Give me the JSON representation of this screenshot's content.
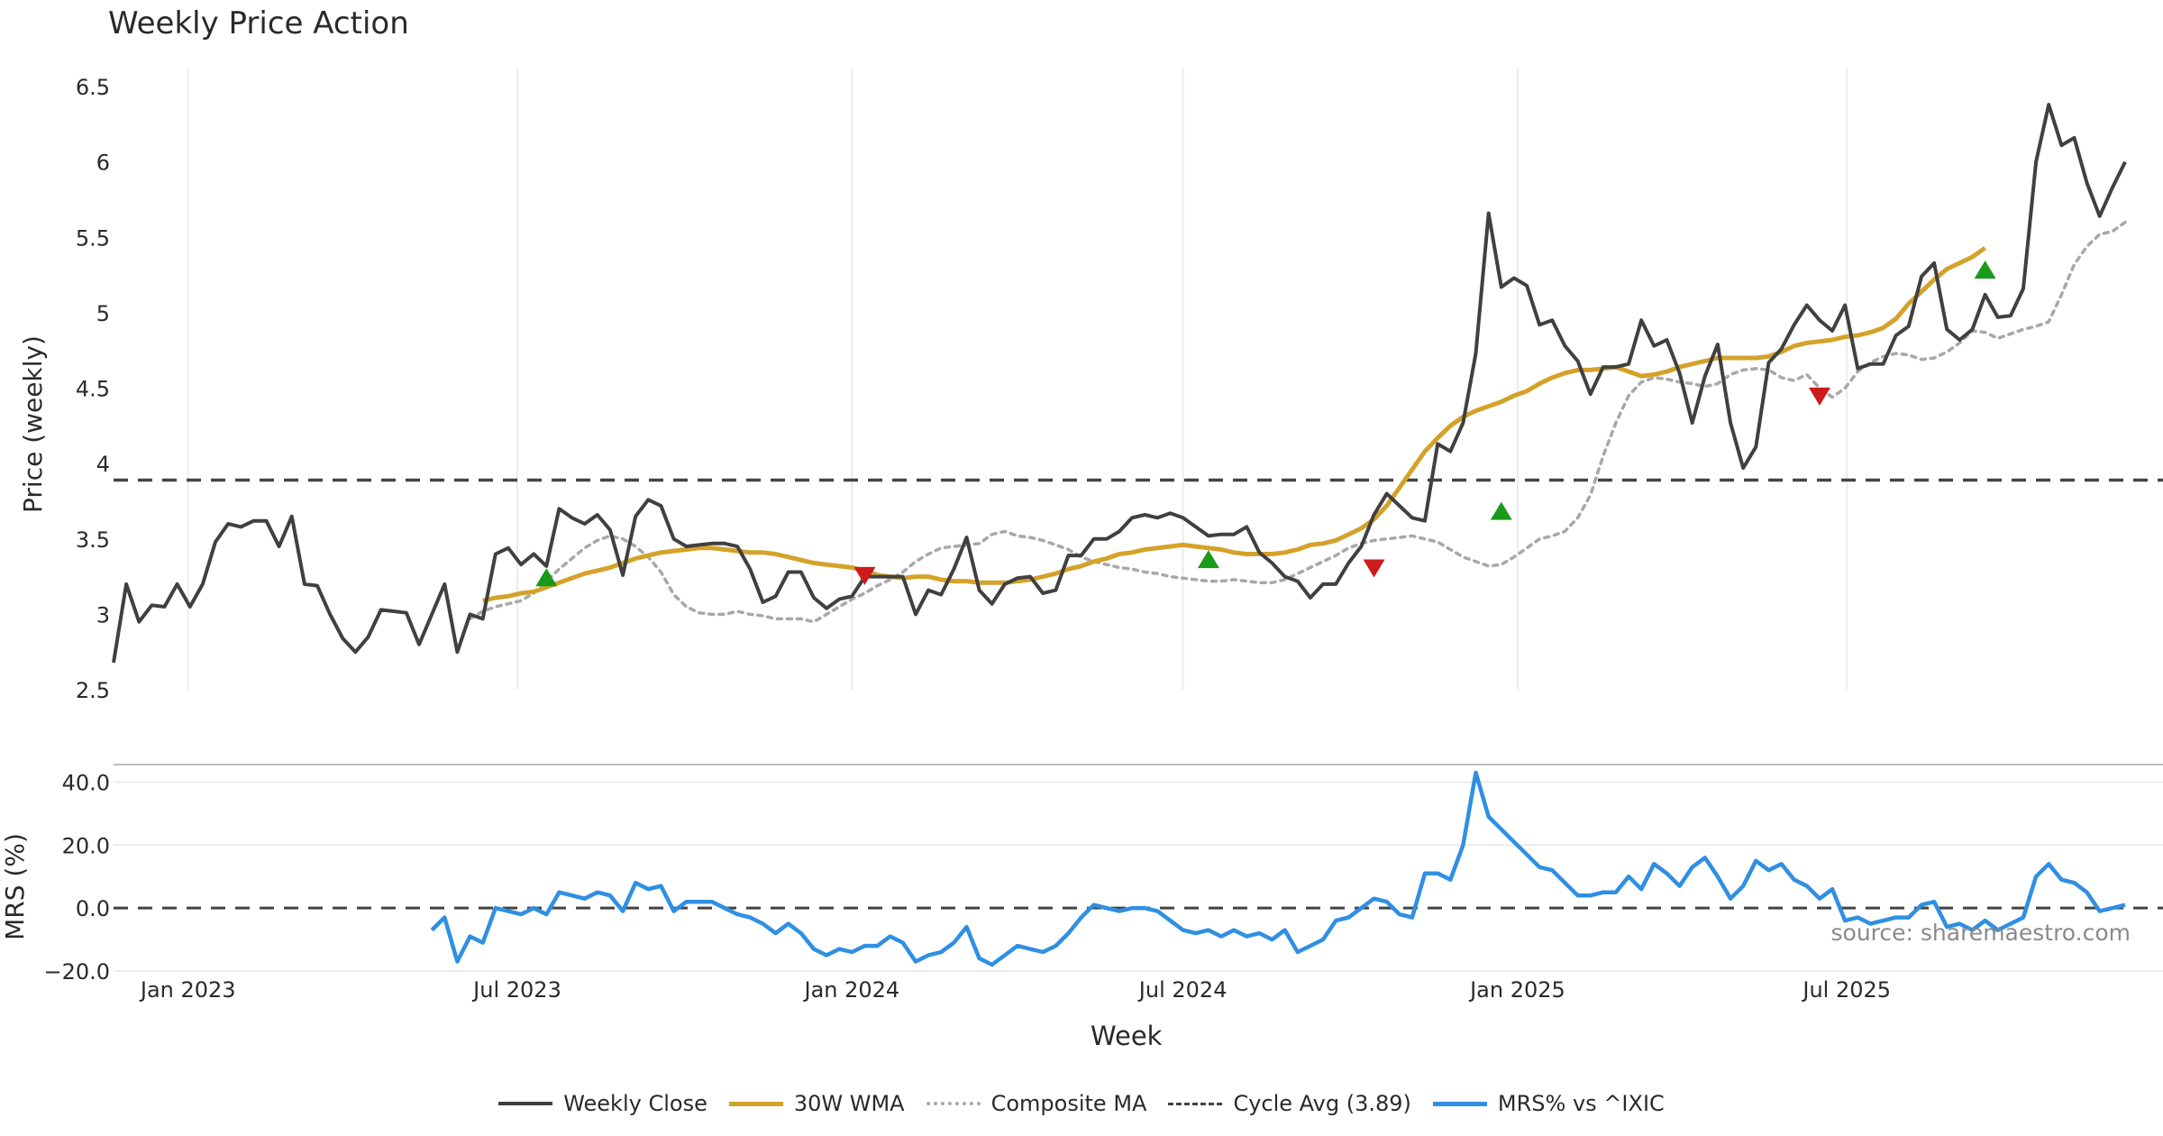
{
  "title": "Weekly Price Action",
  "source_note": "source: sharemaestro.com",
  "colors": {
    "close": "#404040",
    "wma": "#d4a22a",
    "composite": "#a8a8a8",
    "cycle": "#444444",
    "mrs": "#2f8fe3",
    "buy": "#1a9a1a",
    "sell": "#cc1b1b",
    "grid": "#ececec"
  },
  "chart_data": [
    {
      "type": "line",
      "title": "Weekly Price Action",
      "ylabel": "Price (weekly)",
      "xlabel": "",
      "x_start": "2022-11-21",
      "x_step_days": 7,
      "ylim": [
        2.5,
        6.5
      ],
      "yticks": [
        "2.5",
        "3",
        "3.5",
        "4",
        "4.5",
        "5",
        "5.5",
        "6",
        "6.5"
      ],
      "grid": "vertical",
      "series": [
        {
          "name": "Weekly Close",
          "values": [
            2.68,
            3.2,
            2.95,
            3.06,
            3.05,
            3.2,
            3.05,
            3.2,
            3.48,
            3.6,
            3.58,
            3.62,
            3.62,
            3.45,
            3.65,
            3.2,
            3.19,
            3.0,
            2.84,
            2.75,
            2.85,
            3.03,
            3.02,
            3.01,
            2.8,
            3.0,
            3.2,
            2.75,
            3.0,
            2.97,
            3.4,
            3.44,
            3.33,
            3.4,
            3.32,
            3.7,
            3.64,
            3.6,
            3.66,
            3.56,
            3.26,
            3.65,
            3.76,
            3.72,
            3.5,
            3.45,
            3.46,
            3.47,
            3.47,
            3.45,
            3.3,
            3.08,
            3.12,
            3.28,
            3.28,
            3.11,
            3.04,
            3.1,
            3.12,
            3.25,
            3.25,
            3.25,
            3.25,
            3.0,
            3.16,
            3.13,
            3.3,
            3.51,
            3.16,
            3.07,
            3.2,
            3.24,
            3.25,
            3.14,
            3.16,
            3.39,
            3.39,
            3.5,
            3.5,
            3.55,
            3.64,
            3.66,
            3.64,
            3.67,
            3.64,
            3.58,
            3.52,
            3.53,
            3.53,
            3.58,
            3.41,
            3.34,
            3.25,
            3.22,
            3.11,
            3.2,
            3.2,
            3.34,
            3.45,
            3.66,
            3.8,
            3.72,
            3.64,
            3.62,
            4.13,
            4.08,
            4.27,
            4.73,
            5.66,
            5.17,
            5.23,
            5.18,
            4.92,
            4.95,
            4.78,
            4.68,
            4.46,
            4.64,
            4.64,
            4.66,
            4.95,
            4.78,
            4.82,
            4.6,
            4.27,
            4.58,
            4.79,
            4.27,
            3.97,
            4.11,
            4.67,
            4.76,
            4.92,
            5.05,
            4.95,
            4.88,
            5.05,
            4.63,
            4.66,
            4.66,
            4.85,
            4.91,
            5.24,
            5.33,
            4.89,
            4.82,
            4.89,
            5.12,
            4.97,
            4.98,
            5.16,
            6.0,
            6.38,
            6.11,
            6.16,
            5.86,
            5.64,
            5.83,
            6.0
          ]
        },
        {
          "name": "30W WMA",
          "offset": 29,
          "values": [
            3.09,
            3.11,
            3.12,
            3.14,
            3.15,
            3.18,
            3.21,
            3.24,
            3.27,
            3.29,
            3.31,
            3.34,
            3.37,
            3.39,
            3.41,
            3.42,
            3.43,
            3.44,
            3.44,
            3.43,
            3.42,
            3.41,
            3.41,
            3.4,
            3.38,
            3.36,
            3.34,
            3.33,
            3.32,
            3.31,
            3.29,
            3.26,
            3.25,
            3.24,
            3.25,
            3.25,
            3.23,
            3.22,
            3.22,
            3.21,
            3.21,
            3.21,
            3.22,
            3.23,
            3.25,
            3.27,
            3.3,
            3.32,
            3.35,
            3.37,
            3.4,
            3.41,
            3.43,
            3.44,
            3.45,
            3.46,
            3.45,
            3.44,
            3.43,
            3.41,
            3.4,
            3.4,
            3.4,
            3.41,
            3.43,
            3.46,
            3.47,
            3.49,
            3.53,
            3.57,
            3.63,
            3.72,
            3.84,
            3.96,
            4.08,
            4.17,
            4.25,
            4.31,
            4.35,
            4.38,
            4.41,
            4.45,
            4.48,
            4.53,
            4.57,
            4.6,
            4.62,
            4.62,
            4.63,
            4.64,
            4.61,
            4.58,
            4.59,
            4.61,
            4.64,
            4.66,
            4.68,
            4.7,
            4.7,
            4.7,
            4.7,
            4.71,
            4.74,
            4.78,
            4.8,
            4.81,
            4.82,
            4.84,
            4.85,
            4.87,
            4.9,
            4.96,
            5.06,
            5.14,
            5.22,
            5.29,
            5.33,
            5.37,
            5.43
          ]
        },
        {
          "name": "Composite MA",
          "values": [
            2.97,
            3.02,
            3.05,
            3.07,
            3.09,
            3.14,
            3.22,
            3.3,
            3.37,
            3.44,
            3.49,
            3.52,
            3.5,
            3.45,
            3.38,
            3.28,
            3.13,
            3.05,
            3.01,
            3.0,
            3.0,
            3.02,
            3.0,
            2.99,
            2.97,
            2.97,
            2.97,
            2.95,
            3.0,
            3.05,
            3.1,
            3.14,
            3.19,
            3.23,
            3.28,
            3.35,
            3.4,
            3.44,
            3.45,
            3.46,
            3.47,
            3.53,
            3.55,
            3.52,
            3.51,
            3.49,
            3.46,
            3.43,
            3.38,
            3.35,
            3.33,
            3.31,
            3.3,
            3.28,
            3.27,
            3.25,
            3.24,
            3.23,
            3.22,
            3.22,
            3.23,
            3.22,
            3.21,
            3.21,
            3.23,
            3.27,
            3.31,
            3.35,
            3.39,
            3.44,
            3.47,
            3.49,
            3.5,
            3.51,
            3.52,
            3.5,
            3.48,
            3.43,
            3.38,
            3.35,
            3.32,
            3.33,
            3.38,
            3.44,
            3.5,
            3.52,
            3.55,
            3.64,
            3.79,
            4.05,
            4.27,
            4.45,
            4.54,
            4.57,
            4.56,
            4.54,
            4.53,
            4.51,
            4.53,
            4.59,
            4.62,
            4.63,
            4.62,
            4.57,
            4.55,
            4.59,
            4.5,
            4.44,
            4.5,
            4.61,
            4.67,
            4.71,
            4.73,
            4.72,
            4.69,
            4.7,
            4.74,
            4.8,
            4.88,
            4.87,
            4.83,
            4.86,
            4.89,
            4.91,
            4.94,
            5.12,
            5.32,
            5.44,
            5.52,
            5.54,
            5.6
          ]
        },
        {
          "name": "Cycle Avg (3.89)",
          "constant": 3.89
        }
      ],
      "signals": {
        "buy": [
          {
            "week": 34,
            "value": 3.24
          },
          {
            "week": 86,
            "value": 3.36
          },
          {
            "week": 109,
            "value": 3.68
          },
          {
            "week": 147,
            "value": 5.28
          }
        ],
        "sell": [
          {
            "week": 59,
            "value": 3.26
          },
          {
            "week": 99,
            "value": 3.31
          },
          {
            "week": 134,
            "value": 4.45
          }
        ]
      }
    },
    {
      "type": "line",
      "ylabel": "MRS (%)",
      "xlabel": "Week",
      "ylim": [
        -20,
        45
      ],
      "yticks": [
        "−20.0",
        "0.0",
        "20.0",
        "40.0"
      ],
      "xticks": [
        "Jan 2023",
        "Jul 2023",
        "Jan 2024",
        "Jul 2024",
        "Jan 2025",
        "Jul 2025"
      ],
      "xtick_dates": [
        "2023-01-01",
        "2023-07-01",
        "2024-01-01",
        "2024-07-01",
        "2025-01-01",
        "2025-07-01"
      ],
      "zero_line": 0,
      "series": [
        {
          "name": "MRS% vs ^IXIC",
          "offset": 25,
          "values": [
            -7,
            -3,
            -17,
            -9,
            -11,
            0,
            -1,
            -2,
            0,
            -2,
            5,
            4,
            3,
            5,
            4,
            -1,
            8,
            6,
            7,
            -1,
            2,
            2,
            2,
            0,
            -2,
            -3,
            -5,
            -8,
            -5,
            -8,
            -13,
            -15,
            -13,
            -14,
            -12,
            -12,
            -9,
            -11,
            -17,
            -15,
            -14,
            -11,
            -6,
            -16,
            -18,
            -15,
            -12,
            -13,
            -14,
            -12,
            -8,
            -3,
            1,
            0,
            -1,
            0,
            0,
            -1,
            -4,
            -7,
            -8,
            -7,
            -9,
            -7,
            -9,
            -8,
            -10,
            -7,
            -14,
            -12,
            -10,
            -4,
            -3,
            0,
            3,
            2,
            -2,
            -3,
            11,
            11,
            9,
            20,
            43,
            29,
            25,
            21,
            17,
            13,
            12,
            8,
            4,
            4,
            5,
            5,
            10,
            6,
            14,
            11,
            7,
            13,
            16,
            10,
            3,
            7,
            15,
            12,
            14,
            9,
            7,
            3,
            6,
            -4,
            -3,
            -5,
            -4,
            -3,
            -3,
            1,
            2,
            -6,
            -5,
            -7,
            -4,
            -7,
            -5,
            -3,
            10,
            14,
            9,
            8,
            5,
            -1,
            0,
            1
          ]
        }
      ]
    }
  ],
  "legend": [
    {
      "label": "Weekly Close",
      "color": "#404040",
      "style": "solid"
    },
    {
      "label": "30W WMA",
      "color": "#d4a22a",
      "style": "solid"
    },
    {
      "label": "Composite MA",
      "color": "#a8a8a8",
      "style": "dotted"
    },
    {
      "label": "Cycle Avg (3.89)",
      "color": "#444444",
      "style": "dashed"
    },
    {
      "label": "MRS% vs ^IXIC",
      "color": "#2f8fe3",
      "style": "solid"
    }
  ]
}
